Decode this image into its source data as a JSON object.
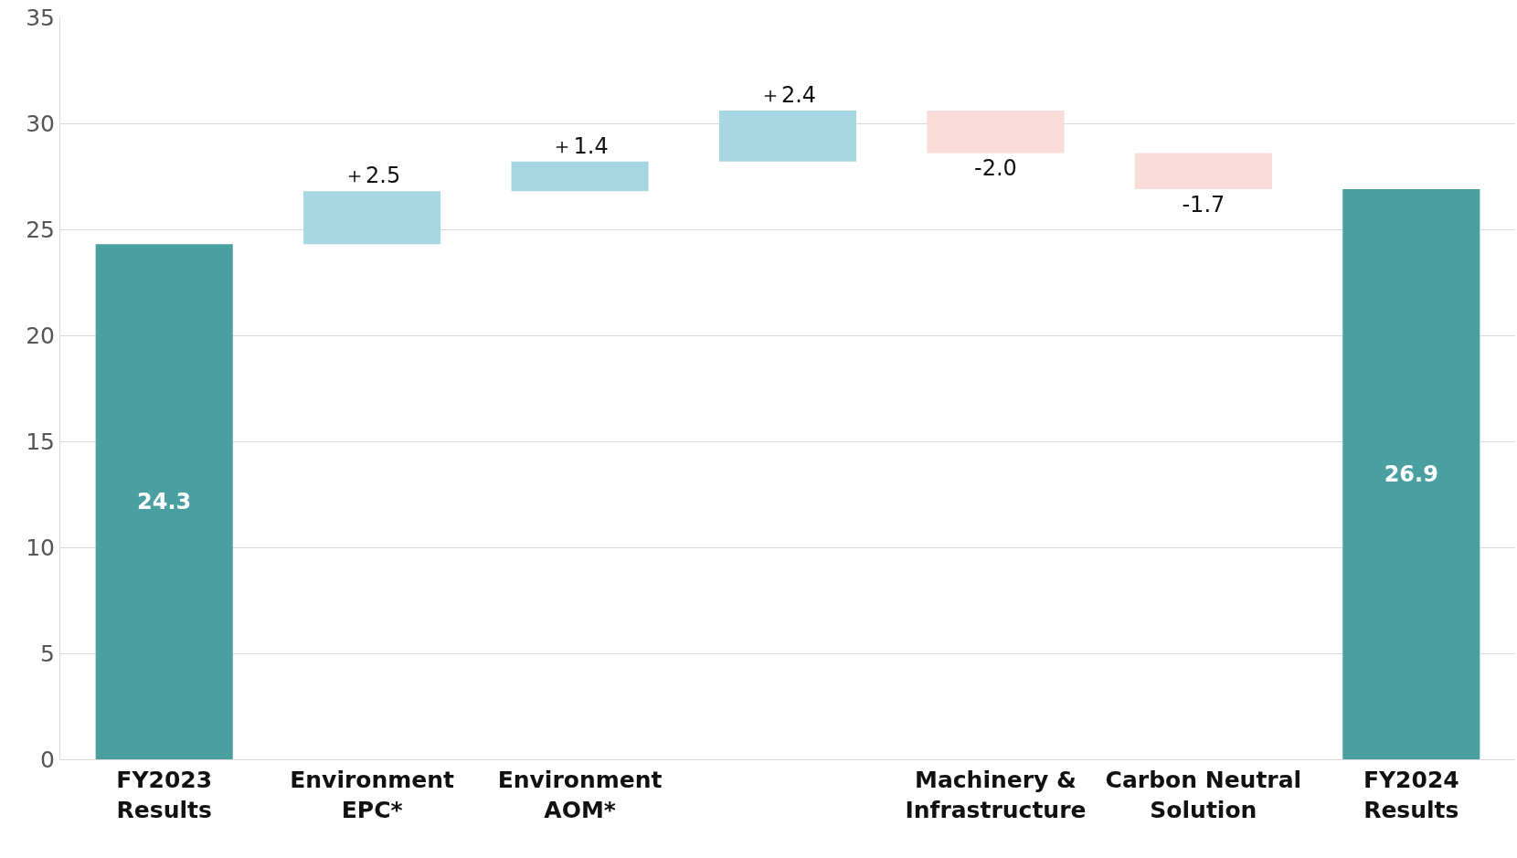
{
  "chart_data": {
    "type": "bar",
    "categories": [
      "FY2023\nResults",
      "Environment\nEPC*",
      "Environment\nAOM*",
      null,
      "Machinery &\nInfrastructure",
      "Carbon Neutral\nSolution",
      "FY2024\nResults"
    ],
    "values": [
      24.3,
      2.5,
      1.4,
      2.4,
      -2.0,
      -1.7,
      26.9
    ],
    "base": [
      0,
      24.3,
      26.8,
      28.2,
      30.6,
      28.6,
      0
    ],
    "colors": [
      "#4a9fa0",
      "#a6d7e3",
      "#a6d7e3",
      "#a6d7e3",
      "#f9dcd8",
      "#f9dcd8",
      "#4a9fa0"
    ],
    "value_labels": [
      "24.3",
      "＋2.5",
      "＋1.4",
      "＋2.4",
      "-2.0",
      "-1.7",
      "26.9"
    ],
    "ylim": [
      0,
      35
    ],
    "yticks": [
      0,
      5,
      10,
      15,
      20,
      25,
      30,
      35
    ],
    "grid": "y"
  }
}
